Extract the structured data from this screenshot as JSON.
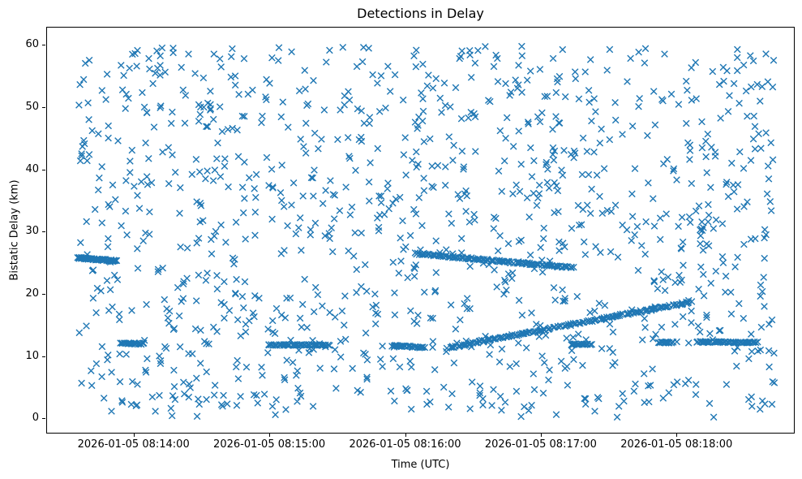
{
  "chart": {
    "title": "Detections in Delay",
    "xlabel": "Time (UTC)",
    "ylabel": "Bistatic Delay (km)"
  },
  "chart_data": {
    "type": "scatter",
    "title": "Detections in Delay",
    "xlabel": "Time (UTC)",
    "ylabel": "Bistatic Delay (km)",
    "marker": "x",
    "marker_color": "#1f77b4",
    "legend": "none",
    "grid": false,
    "x_axis": {
      "unit": "seconds relative to 2026-01-05 08:14:00 UTC",
      "domain": [
        -38.6,
        291.5
      ],
      "ticks": [
        {
          "t": 0,
          "label": "2026-01-05 08:14:00"
        },
        {
          "t": 60,
          "label": "2026-01-05 08:15:00"
        },
        {
          "t": 120,
          "label": "2026-01-05 08:16:00"
        },
        {
          "t": 180,
          "label": "2026-01-05 08:17:00"
        },
        {
          "t": 240,
          "label": "2026-01-05 08:18:00"
        }
      ]
    },
    "y_axis": {
      "domain": [
        -2.2,
        62.9
      ],
      "ticks": [
        {
          "v": 0,
          "label": "0"
        },
        {
          "v": 10,
          "label": "10"
        },
        {
          "v": 20,
          "label": "20"
        },
        {
          "v": 30,
          "label": "30"
        },
        {
          "v": 40,
          "label": "40"
        },
        {
          "v": 50,
          "label": "50"
        },
        {
          "v": 60,
          "label": "60"
        }
      ]
    },
    "clutter": {
      "description": "uniform random false-alarm detections filling the plot",
      "count": 1150,
      "seed": 42,
      "t_range": [
        -25,
        284
      ],
      "y_range": [
        0.3,
        59.9
      ]
    },
    "tracks": [
      {
        "name": "target-track-early-26km",
        "t0": -25,
        "t1": -8,
        "y0": 25.9,
        "y1": 25.4,
        "count": 60,
        "t_jitter": 0.6,
        "y_jitter": 0.12
      },
      {
        "name": "target-track-descending-26-24",
        "t0": 124,
        "t1": 194,
        "y0": 26.6,
        "y1": 24.3,
        "count": 130,
        "t_jitter": 0.8,
        "y_jitter": 0.13
      },
      {
        "name": "target-track-ascending-11-19",
        "t0": 139,
        "t1": 246,
        "y0": 11.5,
        "y1": 18.8,
        "count": 170,
        "t_jitter": 0.9,
        "y_jitter": 0.13
      },
      {
        "name": "target-track-12km-seg1",
        "t0": -6,
        "t1": 4,
        "y0": 12.2,
        "y1": 12.1,
        "count": 26,
        "t_jitter": 0.5,
        "y_jitter": 0.1
      },
      {
        "name": "target-track-12km-seg2",
        "t0": 59,
        "t1": 86,
        "y0": 11.9,
        "y1": 11.9,
        "count": 55,
        "t_jitter": 0.6,
        "y_jitter": 0.1
      },
      {
        "name": "target-track-12km-seg3",
        "t0": 114,
        "t1": 128,
        "y0": 11.8,
        "y1": 11.5,
        "count": 30,
        "t_jitter": 0.5,
        "y_jitter": 0.1
      },
      {
        "name": "target-track-12km-seg4",
        "t0": 193,
        "t1": 202,
        "y0": 12.0,
        "y1": 12.0,
        "count": 22,
        "t_jitter": 0.5,
        "y_jitter": 0.1
      },
      {
        "name": "target-track-12km-seg5",
        "t0": 232,
        "t1": 238,
        "y0": 12.3,
        "y1": 12.3,
        "count": 16,
        "t_jitter": 0.5,
        "y_jitter": 0.1
      },
      {
        "name": "target-track-12km-seg6",
        "t0": 249,
        "t1": 275,
        "y0": 12.4,
        "y1": 12.3,
        "count": 55,
        "t_jitter": 0.6,
        "y_jitter": 0.1
      }
    ],
    "marker_half_size_px": 3.8,
    "marker_stroke_px": 1.4
  }
}
